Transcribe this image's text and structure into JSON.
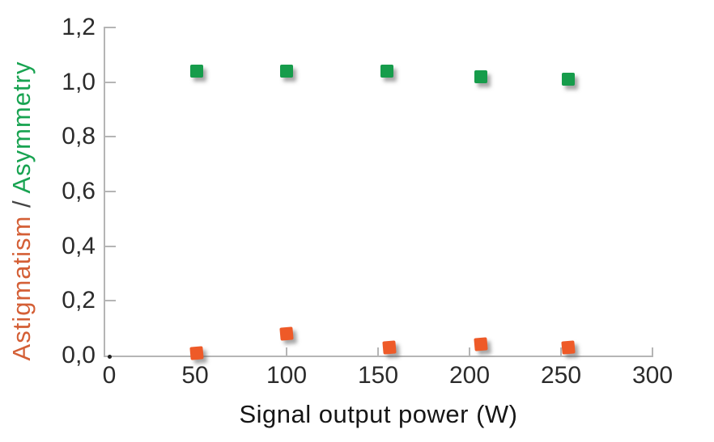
{
  "chart_data": {
    "type": "scatter",
    "title": "",
    "xlabel": "Signal output power (W)",
    "ylabel_parts": [
      {
        "text": "Astigmatism",
        "color": "#D45F36"
      },
      {
        "text": " / ",
        "color": "#444444"
      },
      {
        "text": "Asymmetry",
        "color": "#18A351"
      }
    ],
    "x_range": [
      0,
      300
    ],
    "y_range": [
      0,
      1.2
    ],
    "grid": false,
    "legend": "none",
    "decimal_separator": ",",
    "x_ticks": [
      {
        "value": 0,
        "label": "0"
      },
      {
        "value": 50,
        "label": "50"
      },
      {
        "value": 100,
        "label": "100"
      },
      {
        "value": 150,
        "label": "150"
      },
      {
        "value": 200,
        "label": "200"
      },
      {
        "value": 250,
        "label": "250"
      },
      {
        "value": 300,
        "label": "300"
      }
    ],
    "y_ticks": [
      {
        "value": 0.0,
        "label": "0,0"
      },
      {
        "value": 0.2,
        "label": "0,2"
      },
      {
        "value": 0.4,
        "label": "0,4"
      },
      {
        "value": 0.6,
        "label": "0,6"
      },
      {
        "value": 0.8,
        "label": "0,8"
      },
      {
        "value": 1.0,
        "label": "1,0"
      },
      {
        "value": 1.2,
        "label": "1,2"
      }
    ],
    "series": [
      {
        "name": "Asymmetry",
        "marker": "square",
        "color": "#169C4B",
        "points": [
          {
            "x": 51,
            "y": 1.04
          },
          {
            "x": 100,
            "y": 1.04
          },
          {
            "x": 155,
            "y": 1.04
          },
          {
            "x": 206,
            "y": 1.02
          },
          {
            "x": 254,
            "y": 1.01
          }
        ]
      },
      {
        "name": "Astigmatism",
        "marker": "square",
        "color": "#EE5A28",
        "points": [
          {
            "x": 51,
            "y": 0.01
          },
          {
            "x": 100,
            "y": 0.08
          },
          {
            "x": 156,
            "y": 0.03
          },
          {
            "x": 206,
            "y": 0.04
          },
          {
            "x": 254,
            "y": 0.03
          }
        ]
      }
    ]
  }
}
